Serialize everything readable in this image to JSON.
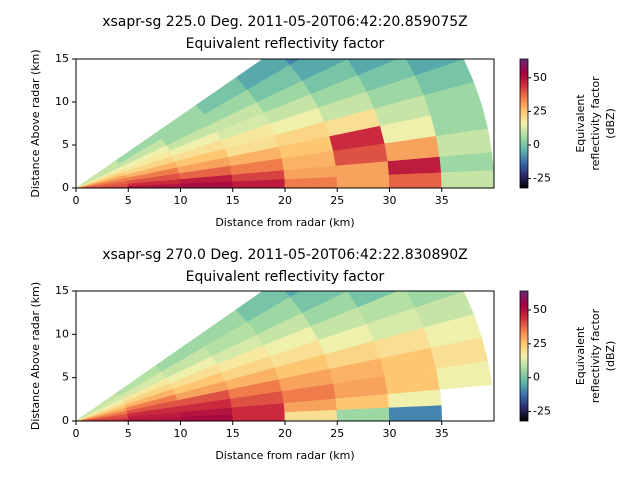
{
  "chart_data": [
    {
      "type": "rhi",
      "title": [
        "xsapr-sg 225.0 Deg. 2011-05-20T06:42:20.859075Z",
        "Equivalent reflectivity factor"
      ],
      "x_label": "Distance from radar (km)",
      "y_label": "Distance Above radar  (km)",
      "colorbar_label": [
        "Equivalent",
        "reflectivity factor",
        "(dBZ)"
      ],
      "xlim": [
        0,
        40
      ],
      "ylim": [
        0,
        15
      ],
      "xticks": [
        0,
        5,
        10,
        15,
        20,
        25,
        30,
        35
      ],
      "yticks": [
        0,
        5,
        10,
        15
      ],
      "clim": [
        -32,
        64
      ],
      "cticks": [
        -25,
        0,
        25,
        50
      ],
      "colormap": [
        "#000000",
        "#2c2a6e",
        "#3a6fb0",
        "#5fb8a8",
        "#a8dca2",
        "#f6f2ad",
        "#fdc46e",
        "#f07a4a",
        "#cc2a3d",
        "#9e0142",
        "#6a2a7a"
      ],
      "range_edges": [
        0,
        5,
        10,
        15,
        20,
        25,
        30,
        35,
        40
      ],
      "elevation_edges": [
        0,
        3,
        6,
        10,
        14,
        18,
        22,
        26,
        30,
        35,
        40
      ],
      "values": [
        [
          42,
          50,
          52,
          48,
          35,
          30,
          38,
          10
        ],
        [
          40,
          45,
          48,
          42,
          30,
          30,
          48,
          5
        ],
        [
          38,
          40,
          38,
          35,
          28,
          40,
          30,
          10
        ],
        [
          35,
          35,
          30,
          28,
          25,
          45,
          15,
          5
        ],
        [
          30,
          28,
          25,
          20,
          22,
          20,
          10,
          5
        ],
        [
          25,
          22,
          20,
          18,
          15,
          10,
          5,
          0
        ],
        [
          20,
          18,
          15,
          12,
          10,
          5,
          0,
          -5
        ],
        [
          15,
          15,
          10,
          10,
          5,
          0,
          -5,
          -10
        ],
        [
          10,
          10,
          5,
          5,
          0,
          -5,
          -10,
          -15
        ],
        [
          10,
          5,
          5,
          0,
          -5,
          -10,
          -15,
          -20
        ]
      ]
    },
    {
      "type": "rhi",
      "title": [
        "xsapr-sg 270.0 Deg. 2011-05-20T06:42:22.830890Z",
        "Equivalent reflectivity factor"
      ],
      "x_label": "Distance from radar (km)",
      "y_label": "Distance Above radar  (km)",
      "colorbar_label": [
        "Equivalent",
        "reflectivity factor",
        "(dBZ)"
      ],
      "xlim": [
        0,
        40
      ],
      "ylim": [
        0,
        15
      ],
      "xticks": [
        0,
        5,
        10,
        15,
        20,
        25,
        30,
        35
      ],
      "yticks": [
        0,
        5,
        10,
        15
      ],
      "clim": [
        -32,
        64
      ],
      "cticks": [
        -25,
        0,
        25,
        50
      ],
      "colormap": [
        "#000000",
        "#2c2a6e",
        "#3a6fb0",
        "#5fb8a8",
        "#a8dca2",
        "#f6f2ad",
        "#fdc46e",
        "#f07a4a",
        "#cc2a3d",
        "#9e0142",
        "#6a2a7a"
      ],
      "range_edges": [
        0,
        5,
        10,
        15,
        20,
        25,
        30,
        35,
        40
      ],
      "elevation_edges": [
        0,
        3,
        6,
        10,
        14,
        18,
        22,
        26,
        30,
        35,
        40
      ],
      "values": [
        [
          45,
          50,
          52,
          45,
          20,
          5,
          -10,
          null
        ],
        [
          42,
          48,
          50,
          45,
          30,
          25,
          15,
          null
        ],
        [
          40,
          45,
          45,
          40,
          35,
          30,
          25,
          15
        ],
        [
          35,
          40,
          40,
          35,
          30,
          28,
          25,
          20
        ],
        [
          30,
          35,
          30,
          28,
          25,
          22,
          20,
          15
        ],
        [
          25,
          28,
          25,
          22,
          20,
          15,
          12,
          10
        ],
        [
          20,
          22,
          20,
          18,
          15,
          10,
          8,
          5
        ],
        [
          15,
          18,
          15,
          12,
          10,
          5,
          0,
          -5
        ],
        [
          12,
          12,
          10,
          8,
          5,
          0,
          -5,
          -10
        ],
        [
          10,
          8,
          5,
          5,
          0,
          -5,
          -10,
          -15
        ]
      ]
    }
  ]
}
